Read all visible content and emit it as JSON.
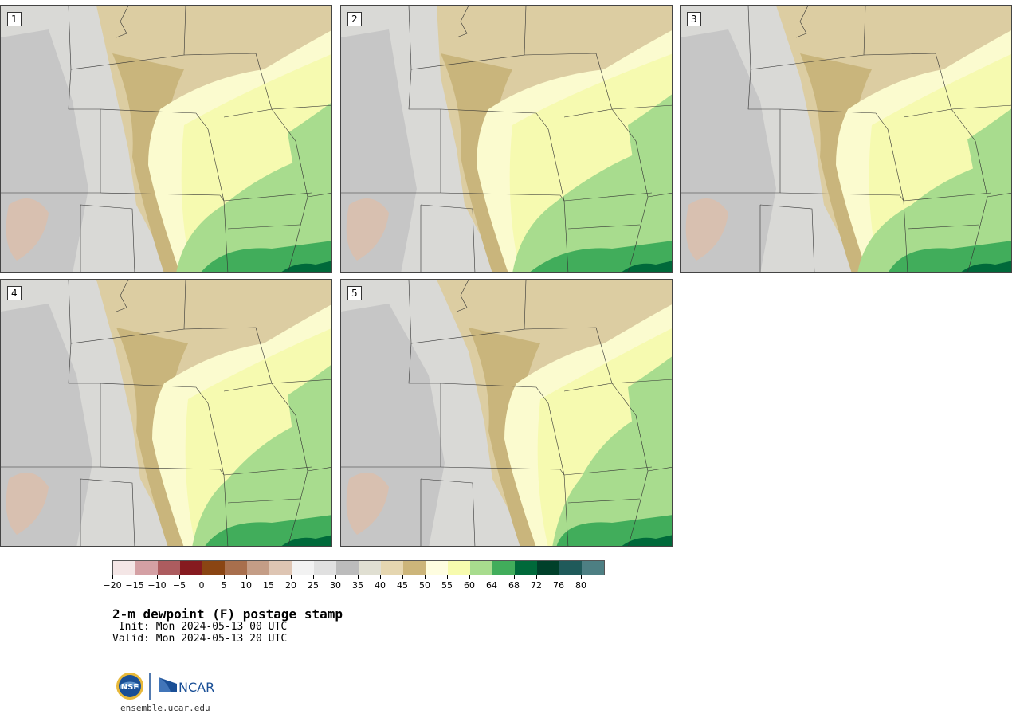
{
  "panels": [
    {
      "label": "1",
      "color": "#d9c89a"
    },
    {
      "label": "2",
      "color": "#d9c89a"
    },
    {
      "label": "3",
      "color": "#d9c89a"
    },
    {
      "label": "4",
      "color": "#d9c89a"
    },
    {
      "label": "5",
      "color": "#d9c89a"
    }
  ],
  "colorbar": {
    "colors": [
      "#f4e6e6",
      "#d4a0a4",
      "#ad5c5f",
      "#861a1f",
      "#8a4513",
      "#a86f4d",
      "#c49d86",
      "#dec5b3",
      "#f2f2f2",
      "#e0e0e0",
      "#bcbcbc",
      "#e0dfd2",
      "#e5d6b0",
      "#ccb57a",
      "#fefde0",
      "#f7fbae",
      "#a8dc8e",
      "#41ad5b",
      "#00693a",
      "#00402a",
      "#1f5a5a",
      "#4d7f83"
    ],
    "ticks": [
      "−20",
      "−15",
      "−10",
      "−5",
      "0",
      "5",
      "10",
      "15",
      "20",
      "25",
      "30",
      "35",
      "40",
      "45",
      "50",
      "55",
      "60",
      "64",
      "68",
      "72",
      "76",
      "80"
    ]
  },
  "title": "2-m dewpoint (F) postage stamp",
  "init": " Init: Mon 2024-05-13 00 UTC",
  "valid": "Valid: Mon 2024-05-13 20 UTC",
  "logos": {
    "nsf": "NSF",
    "ncar": "NCAR"
  },
  "url": "ensemble.ucar.edu"
}
